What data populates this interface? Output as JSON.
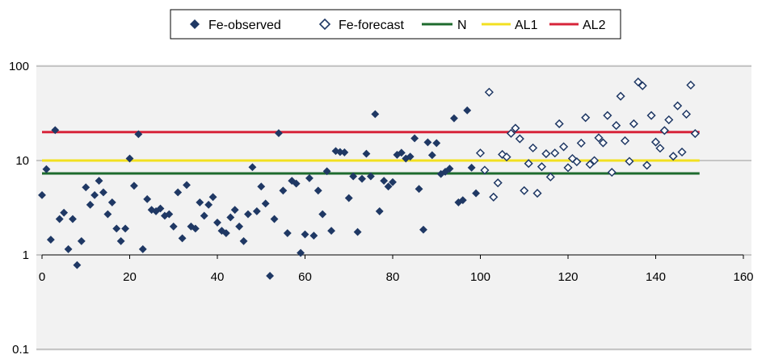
{
  "chart_data": {
    "type": "scatter",
    "title": "",
    "xlabel": "",
    "ylabel": "",
    "xlim": [
      0,
      160
    ],
    "ylim": [
      0.1,
      100
    ],
    "y_scale": "log",
    "x_ticks": [
      "0",
      "20",
      "40",
      "60",
      "80",
      "100",
      "120",
      "140",
      "160"
    ],
    "y_ticks": [
      "100",
      "10",
      "1",
      "0.1"
    ],
    "grid": "horizontal",
    "legend_position": "top-center",
    "series": [
      {
        "name": "Fe-observed",
        "marker": "filled-diamond",
        "color": "#1f3864",
        "x": [
          0,
          1,
          2,
          3,
          4,
          5,
          6,
          7,
          8,
          9,
          10,
          11,
          12,
          13,
          14,
          15,
          16,
          17,
          18,
          19,
          20,
          21,
          22,
          23,
          24,
          25,
          26,
          27,
          28,
          29,
          30,
          31,
          32,
          33,
          34,
          35,
          36,
          37,
          38,
          39,
          40,
          41,
          42,
          43,
          44,
          45,
          46,
          47,
          48,
          49,
          50,
          51,
          52,
          53,
          54,
          55,
          56,
          57,
          58,
          59,
          60,
          61,
          62,
          63,
          64,
          65,
          66,
          67,
          68,
          69,
          70,
          71,
          72,
          73,
          74,
          75,
          76,
          77,
          78,
          79,
          80,
          81,
          82,
          83,
          84,
          85,
          86,
          87,
          88,
          89,
          90,
          91,
          92,
          93,
          94,
          95,
          96,
          97,
          98,
          99
        ],
        "y": [
          4.3,
          8.1,
          1.45,
          21,
          2.4,
          2.8,
          1.15,
          2.4,
          0.78,
          1.4,
          5.2,
          3.4,
          4.3,
          6.1,
          4.6,
          2.7,
          3.6,
          1.9,
          1.4,
          1.9,
          10.5,
          5.4,
          19,
          1.15,
          3.9,
          3.0,
          2.9,
          3.1,
          2.6,
          2.7,
          2.0,
          4.6,
          1.5,
          5.5,
          2.0,
          1.9,
          3.6,
          2.6,
          3.4,
          4.1,
          2.2,
          1.8,
          1.7,
          2.5,
          3.0,
          2.0,
          1.4,
          2.7,
          8.5,
          2.9,
          5.3,
          3.5,
          0.6,
          2.4,
          19.5,
          4.8,
          1.7,
          6.1,
          5.7,
          1.05,
          1.65,
          6.5,
          1.6,
          4.8,
          2.7,
          7.7,
          1.8,
          12.6,
          12.3,
          12.2,
          4.0,
          6.8,
          1.75,
          6.4,
          11.8,
          6.8,
          31,
          2.9,
          6.1,
          5.3,
          5.9,
          11.5,
          12.1,
          10.5,
          11.0,
          17.2,
          5.0,
          1.85,
          15.6,
          11.4,
          15.3,
          7.2,
          7.6,
          8.2,
          28,
          3.6,
          3.8,
          34,
          8.4,
          4.5
        ]
      },
      {
        "name": "Fe-forecast",
        "marker": "open-diamond",
        "color": "#1f3864",
        "x": [
          100,
          101,
          102,
          103,
          104,
          105,
          106,
          107,
          108,
          109,
          110,
          111,
          112,
          113,
          114,
          115,
          116,
          117,
          118,
          119,
          120,
          121,
          122,
          123,
          124,
          125,
          126,
          127,
          128,
          129,
          130,
          131,
          132,
          133,
          134,
          135,
          136,
          137,
          138,
          139,
          140,
          141,
          142,
          143,
          144,
          145,
          146,
          147,
          148,
          149
        ],
        "y": [
          12.0,
          7.9,
          53,
          4.1,
          5.8,
          11.6,
          10.9,
          19.4,
          22,
          17.0,
          4.8,
          9.3,
          13.6,
          4.5,
          8.6,
          11.8,
          6.7,
          12.0,
          24.5,
          14.0,
          8.4,
          10.5,
          9.7,
          15.3,
          28.5,
          9.1,
          10.0,
          17.4,
          15.4,
          30,
          7.5,
          23.5,
          48,
          16.2,
          9.8,
          24.5,
          68,
          62,
          8.9,
          30,
          15.7,
          13.5,
          20.8,
          27,
          11.1,
          38,
          12.3,
          31,
          63,
          19.3
        ]
      },
      {
        "name": "N",
        "type": "line",
        "color": "#1e6b2e",
        "x": [
          0,
          150
        ],
        "y": [
          7.3,
          7.3
        ]
      },
      {
        "name": "AL1",
        "type": "line",
        "color": "#f2e020",
        "x": [
          0,
          150
        ],
        "y": [
          10,
          10
        ]
      },
      {
        "name": "AL2",
        "type": "line",
        "color": "#d7243a",
        "x": [
          0,
          150
        ],
        "y": [
          20,
          20
        ]
      }
    ]
  }
}
